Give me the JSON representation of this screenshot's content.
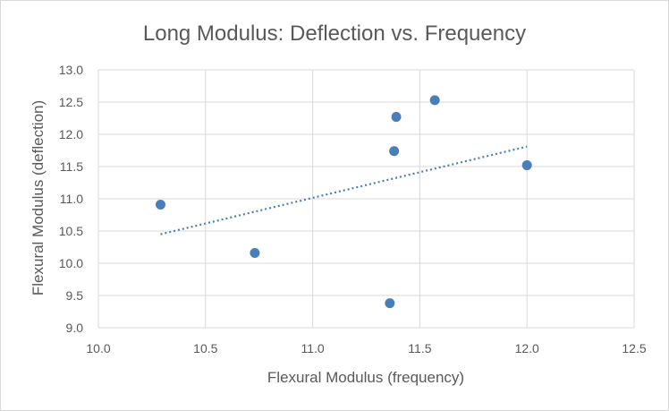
{
  "chart_data": {
    "type": "scatter",
    "title": "Long Modulus: Deflection vs. Frequency",
    "xlabel": "Flexural Modulus (frequency)",
    "ylabel": "Flexural Modulus (deflection)",
    "xlim": [
      10.0,
      12.5
    ],
    "ylim": [
      9.0,
      13.0
    ],
    "x_ticks": [
      "10.0",
      "10.5",
      "11.0",
      "11.5",
      "12.0",
      "12.5"
    ],
    "y_ticks": [
      "13.0",
      "12.5",
      "12.0",
      "11.5",
      "11.0",
      "10.5",
      "10.0",
      "9.5",
      "9.0"
    ],
    "grid": true,
    "series": [
      {
        "x": [
          10.29,
          10.73,
          11.36,
          11.38,
          11.39,
          11.57,
          12.0
        ],
        "y": [
          10.91,
          10.16,
          9.38,
          11.74,
          12.27,
          12.53,
          11.52
        ]
      }
    ],
    "trendline": {
      "type": "linear",
      "x": [
        10.29,
        12.0
      ],
      "y": [
        10.45,
        11.81
      ]
    },
    "colors": {
      "marker": "#4a7ebb",
      "trendline": "#4a7ebb"
    }
  }
}
